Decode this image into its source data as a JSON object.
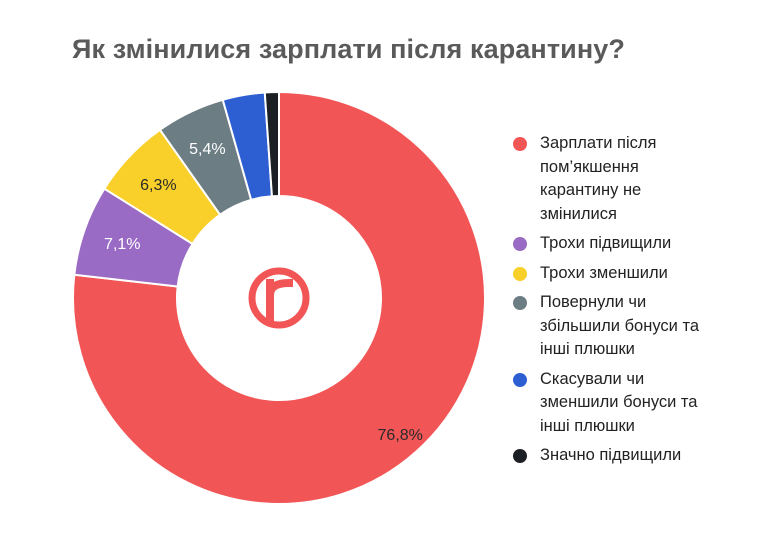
{
  "chart_data": {
    "type": "pie",
    "title": "Як змінилися зарплати після карантину?",
    "series": [
      {
        "name": "Зарплати після пом’якшення карантину не змінилися",
        "value": 76.8,
        "label": "76,8%",
        "color": "#f25555"
      },
      {
        "name": "Трохи підвищили",
        "value": 7.1,
        "label": "7,1%",
        "color": "#9a6bc4"
      },
      {
        "name": "Трохи зменшили",
        "value": 6.3,
        "label": "6,3%",
        "color": "#f9cf2a"
      },
      {
        "name": "Повернули чи збільшили бонуси та інші плюшки",
        "value": 5.4,
        "label": "5,4%",
        "color": "#6c7d84"
      },
      {
        "name": "Скасували чи зменшили бонуси та інші плюшки",
        "value": 3.3,
        "label": "",
        "color": "#2d5fd2"
      },
      {
        "name": "Значно підвищили",
        "value": 1.1,
        "label": "",
        "color": "#1c1f24"
      }
    ],
    "legend_position": "right",
    "donut": true
  },
  "legend": [
    {
      "lines": [
        "Зарплати після",
        "пом’якшення",
        "карантину не",
        "змінилися"
      ],
      "color": "#f25555"
    },
    {
      "lines": [
        "Трохи підвищили"
      ],
      "color": "#9a6bc4"
    },
    {
      "lines": [
        "Трохи зменшили"
      ],
      "color": "#f9cf2a"
    },
    {
      "lines": [
        "Повернули чи",
        "збільшили бонуси та",
        "інші плюшки"
      ],
      "color": "#6c7d84"
    },
    {
      "lines": [
        "Скасували чи",
        "зменшили бонуси та",
        "інші плюшки"
      ],
      "color": "#2d5fd2"
    },
    {
      "lines": [
        "Значно підвищили"
      ],
      "color": "#1c1f24"
    }
  ],
  "logo": {
    "letter": "r",
    "icon": "r-logo-icon",
    "color": "#f25555"
  }
}
